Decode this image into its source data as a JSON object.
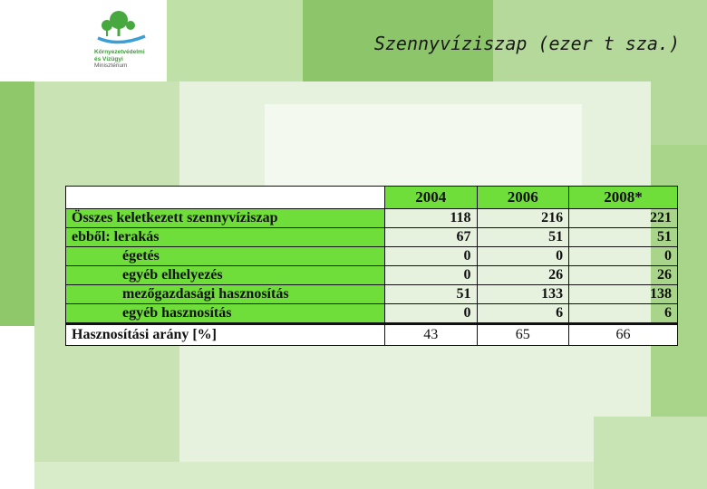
{
  "logo": {
    "line1": "Környezetvédelmi",
    "line2": "és Vízügyi",
    "line3": "Minisztérium"
  },
  "title": "Szennyvíziszap (ezer t sza.)",
  "table": {
    "columns": [
      "",
      "2004",
      "2006",
      "2008*"
    ],
    "rows": [
      {
        "label": "Összes keletkezett szennyvíziszap",
        "indent": false,
        "values": [
          "118",
          "216",
          "221"
        ]
      },
      {
        "label": "ebből: lerakás",
        "indent": false,
        "values": [
          "67",
          "51",
          "51"
        ]
      },
      {
        "label": "égetés",
        "indent": true,
        "values": [
          "0",
          "0",
          "0"
        ]
      },
      {
        "label": "egyéb elhelyezés",
        "indent": true,
        "values": [
          "0",
          "26",
          "26"
        ]
      },
      {
        "label": "mezőgazdasági hasznosítás",
        "indent": true,
        "values": [
          "51",
          "133",
          "138"
        ]
      },
      {
        "label": "egyéb hasznosítás",
        "indent": true,
        "values": [
          "0",
          "6",
          "6"
        ]
      }
    ],
    "rate": {
      "label": "Hasznosítási arány [%]",
      "values": [
        "43",
        "65",
        "66"
      ]
    }
  },
  "colors": {
    "accent": "#6fdd3a",
    "background_green": "#9ed27c"
  }
}
